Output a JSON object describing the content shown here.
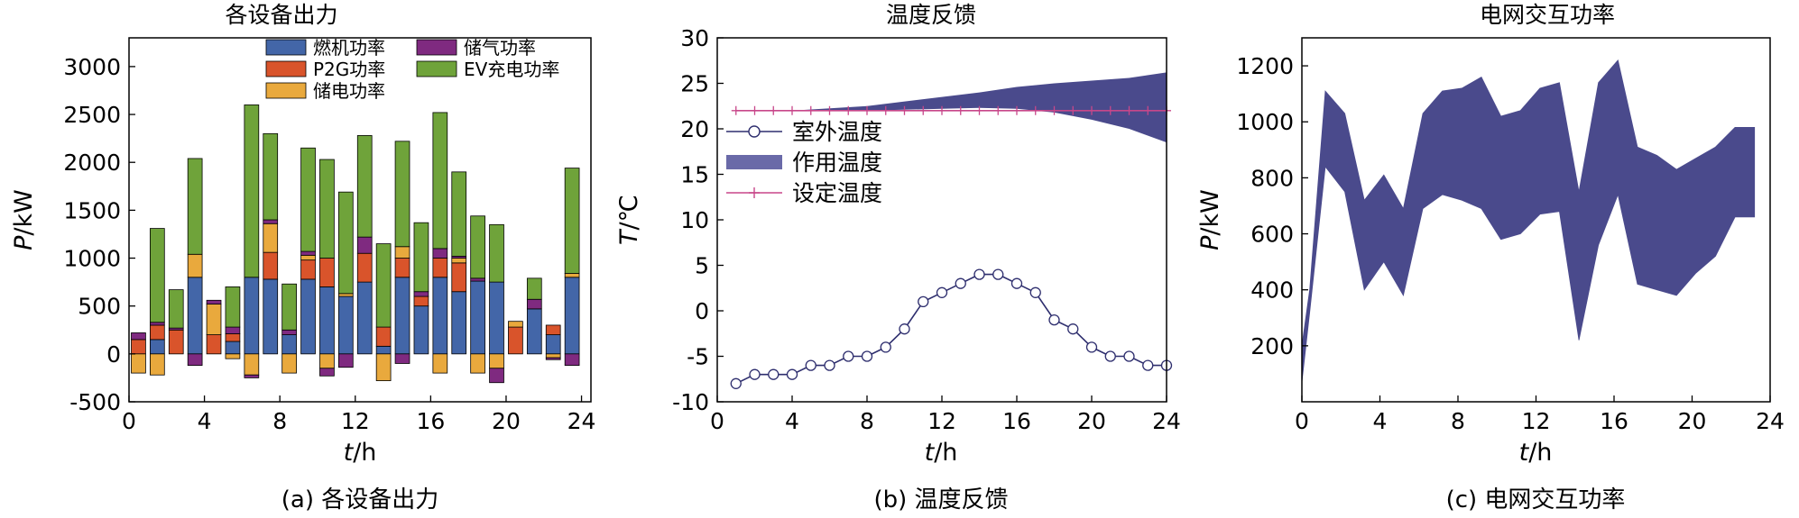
{
  "colors": {
    "gen": "#4366a8",
    "p2g": "#d9542b",
    "storage": "#e9a93d",
    "gas": "#7f2a80",
    "ev": "#6fa33a",
    "band": "#4a4a8c",
    "band_b": "#6a6aa8",
    "outdoor": "#2e2e6e",
    "setpoint": "#c8478a"
  },
  "chart_data": [
    {
      "type": "bar",
      "title": "各设备出力",
      "caption": "(a) 各设备出力",
      "xlabel_italic": "t",
      "xlabel_unit": "/h",
      "ylabel_italic": "P",
      "ylabel_unit": "/kW",
      "xlim": [
        0,
        24.5
      ],
      "ylim": [
        -500,
        3300
      ],
      "xticks": [
        "0",
        "4",
        "8",
        "12",
        "16",
        "20",
        "24"
      ],
      "yticks": [
        "-500",
        "0",
        "500",
        "1000",
        "1500",
        "2000",
        "2500",
        "3000"
      ],
      "legend": [
        "燃机功率",
        "储气功率",
        "P2G功率",
        "EV充电功率",
        "储电功率"
      ],
      "legend_position": "top",
      "x": [
        0.5,
        1.5,
        2.5,
        3.5,
        4.5,
        5.5,
        6.5,
        7.5,
        8.5,
        9.5,
        10.5,
        11.5,
        12.5,
        13.5,
        14.5,
        15.5,
        16.5,
        17.5,
        18.5,
        19.5,
        20.5,
        21.5,
        22.5,
        23.5
      ],
      "series": [
        {
          "name": "燃机功率",
          "key": "gen",
          "values": [
            0,
            150,
            0,
            800,
            0,
            130,
            800,
            780,
            200,
            780,
            700,
            600,
            750,
            80,
            800,
            500,
            800,
            650,
            760,
            750,
            0,
            470,
            200,
            800
          ]
        },
        {
          "name": "P2G功率",
          "key": "p2g",
          "values": [
            150,
            150,
            250,
            0,
            200,
            80,
            0,
            280,
            0,
            200,
            300,
            0,
            300,
            200,
            200,
            100,
            200,
            300,
            0,
            0,
            280,
            0,
            100,
            0
          ]
        },
        {
          "name": "储电功率",
          "key": "storage",
          "values": [
            -200,
            -220,
            0,
            240,
            320,
            -50,
            -220,
            300,
            -200,
            50,
            -150,
            30,
            0,
            -280,
            120,
            0,
            -200,
            50,
            -200,
            -150,
            60,
            0,
            -40,
            40
          ]
        },
        {
          "name": "储气功率",
          "key": "gas",
          "values": [
            70,
            30,
            20,
            -120,
            40,
            70,
            -30,
            40,
            50,
            40,
            -80,
            -140,
            170,
            0,
            -100,
            50,
            100,
            20,
            30,
            -150,
            0,
            100,
            -20,
            -120
          ]
        },
        {
          "name": "EV充电功率",
          "key": "ev",
          "values": [
            0,
            980,
            400,
            1000,
            0,
            420,
            1800,
            900,
            480,
            1080,
            1030,
            1060,
            1060,
            870,
            1100,
            720,
            1420,
            880,
            650,
            600,
            0,
            220,
            0,
            1100
          ]
        }
      ]
    },
    {
      "type": "line",
      "title": "温度反馈",
      "caption": "(b) 温度反馈",
      "xlabel_italic": "t",
      "xlabel_unit": "/h",
      "ylabel_italic": "T",
      "ylabel_unit": "/℃",
      "xlim": [
        0,
        24
      ],
      "ylim": [
        -10,
        30
      ],
      "xticks": [
        "0",
        "4",
        "8",
        "12",
        "16",
        "20",
        "24"
      ],
      "yticks": [
        "-10",
        "-5",
        "0",
        "5",
        "10",
        "15",
        "20",
        "25",
        "30"
      ],
      "legend": [
        "室外温度",
        "作用温度",
        "设定温度"
      ],
      "legend_position": "middle-left",
      "outdoor": {
        "name": "室外温度",
        "x": [
          1,
          2,
          3,
          4,
          5,
          6,
          7,
          8,
          9,
          10,
          11,
          12,
          13,
          14,
          15,
          16,
          17,
          18,
          19,
          20,
          21,
          22,
          23,
          24
        ],
        "y": [
          -8,
          -7,
          -7,
          -7,
          -6,
          -6,
          -5,
          -5,
          -4,
          -2,
          1,
          2,
          3,
          4,
          4,
          3,
          2,
          -1,
          -2,
          -4,
          -5,
          -5,
          -6,
          -6
        ]
      },
      "operative_band": {
        "name": "作用温度",
        "x": [
          1,
          4,
          8,
          12,
          14,
          16,
          18,
          20,
          22,
          24
        ],
        "upper": [
          22,
          22,
          22.5,
          23.5,
          24,
          24.6,
          25,
          25.3,
          25.6,
          26.2
        ],
        "lower": [
          22,
          22,
          22,
          22.2,
          22.3,
          22.2,
          21.8,
          21,
          20,
          18.5
        ]
      },
      "setpoint": {
        "name": "设定温度",
        "x": [
          1,
          2,
          3,
          4,
          5,
          6,
          7,
          8,
          9,
          10,
          11,
          12,
          13,
          14,
          15,
          16,
          17,
          18,
          19,
          20,
          21,
          22,
          23,
          24
        ],
        "y": [
          22,
          22,
          22,
          22,
          22,
          22,
          22,
          22,
          22,
          22,
          22,
          22,
          22,
          22,
          22,
          22,
          22,
          22,
          22,
          22,
          22,
          22,
          22,
          22
        ]
      }
    },
    {
      "type": "area",
      "title": "电网交互功率",
      "caption": "(c) 电网交互功率",
      "xlabel_italic": "t",
      "xlabel_unit": "/h",
      "ylabel_italic": "P",
      "ylabel_unit": "/kW",
      "xlim": [
        0,
        24
      ],
      "ylim": [
        0,
        1300
      ],
      "xticks": [
        "0",
        "4",
        "8",
        "12",
        "16",
        "20",
        "24"
      ],
      "yticks": [
        "200",
        "400",
        "600",
        "800",
        "1000",
        "1200"
      ],
      "band": {
        "x": [
          0,
          0.4,
          1.2,
          2.2,
          3.2,
          4.2,
          5.2,
          6.2,
          7.2,
          8.2,
          9.2,
          10.2,
          11.2,
          12.2,
          13.2,
          14.2,
          15.2,
          16.2,
          17.2,
          18.2,
          19.2,
          20.2,
          21.2,
          22.2,
          23.2
        ],
        "upper": [
          200,
          400,
          1110,
          1030,
          720,
          810,
          690,
          1030,
          1110,
          1120,
          1160,
          1020,
          1040,
          1120,
          1140,
          750,
          1140,
          1220,
          910,
          880,
          830,
          870,
          910,
          980,
          980
        ],
        "lower": [
          70,
          320,
          840,
          750,
          400,
          500,
          380,
          690,
          740,
          720,
          690,
          580,
          600,
          670,
          680,
          220,
          560,
          740,
          420,
          400,
          380,
          460,
          520,
          660,
          660
        ]
      }
    }
  ]
}
